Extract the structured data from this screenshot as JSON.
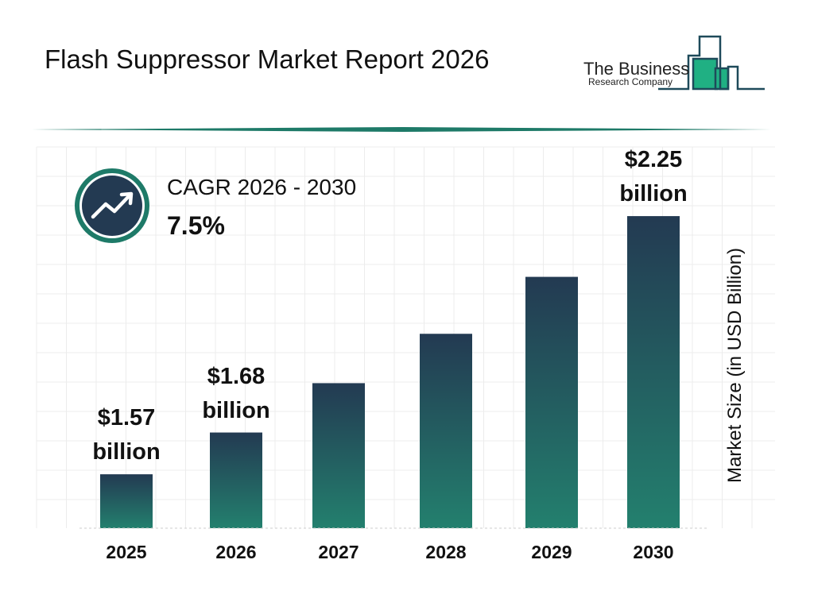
{
  "header": {
    "title": "Flash Suppressor Market Report 2026"
  },
  "logo": {
    "line1": "The Business",
    "line2": "Research Company"
  },
  "cagr": {
    "title": "CAGR 2026 - 2030",
    "value": "7.5%",
    "icon": "trend-up-arrow-icon"
  },
  "colors": {
    "bar_top": "#233a52",
    "bar_bottom": "#23806e",
    "accent": "#1e7a68",
    "dark": "#233a52"
  },
  "chart_data": {
    "type": "bar",
    "title": "",
    "xlabel": "",
    "ylabel": "Market Size (in USD Billion)",
    "categories": [
      "2025",
      "2026",
      "2027",
      "2028",
      "2029",
      "2030"
    ],
    "values": [
      1.57,
      1.68,
      1.81,
      1.94,
      2.09,
      2.25
    ],
    "data_labels": [
      {
        "index": 0,
        "line1": "$1.57",
        "line2": "billion"
      },
      {
        "index": 1,
        "line1": "$1.68",
        "line2": "billion"
      },
      {
        "index": 5,
        "line1": "$2.25",
        "line2": "billion"
      }
    ],
    "grid": true,
    "unit": "USD billion"
  }
}
